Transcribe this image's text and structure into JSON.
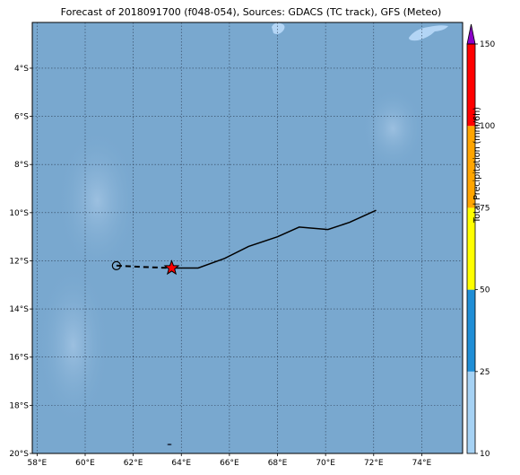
{
  "title": "Forecast of 2018091700 (f048-054), Sources: GDACS (TC track), GFS (Meteo)",
  "map": {
    "lon_range": [
      57.8,
      75.7
    ],
    "lat_range": [
      -20,
      -2.1
    ],
    "lon_ticks": [
      "58°E",
      "60°E",
      "62°E",
      "64°E",
      "66°E",
      "68°E",
      "70°E",
      "72°E",
      "74°E"
    ],
    "lon_tick_values": [
      58,
      60,
      62,
      64,
      66,
      68,
      70,
      72,
      74
    ],
    "lat_ticks": [
      "4°S",
      "6°S",
      "8°S",
      "10°S",
      "12°S",
      "14°S",
      "16°S",
      "18°S",
      "20°S"
    ],
    "lat_tick_values": [
      -4,
      -6,
      -8,
      -10,
      -12,
      -14,
      -16,
      -18,
      -20
    ],
    "ocean_color": "#79a8cf",
    "land_color": "#b3d5f5",
    "grid": true
  },
  "track": {
    "past": [
      [
        61.3,
        -12.2
      ],
      [
        62.3,
        -12.25
      ],
      [
        63.6,
        -12.3
      ]
    ],
    "forecast": [
      [
        63.6,
        -12.3
      ],
      [
        64.7,
        -12.3
      ],
      [
        65.8,
        -11.9
      ],
      [
        66.8,
        -11.4
      ],
      [
        68.0,
        -11.0
      ],
      [
        68.9,
        -10.6
      ],
      [
        70.1,
        -10.7
      ],
      [
        71.0,
        -10.4
      ],
      [
        72.1,
        -9.9
      ]
    ],
    "current_position": [
      63.6,
      -12.3
    ],
    "start_marker": [
      61.3,
      -12.2
    ],
    "current_marker_color": "#ff0000"
  },
  "colorbar": {
    "label": "Total Precipitation (mm/6h)",
    "ticks": [
      "10",
      "25",
      "50",
      "75",
      "100",
      "150"
    ],
    "bins": [
      {
        "from": 10,
        "to": 25,
        "color": "#a6d2f4"
      },
      {
        "from": 25,
        "to": 50,
        "color": "#1f8ed6"
      },
      {
        "from": 50,
        "to": 75,
        "color": "#ffff00"
      },
      {
        "from": 75,
        "to": 100,
        "color": "#ffa500"
      },
      {
        "from": 100,
        "to": 150,
        "color": "#ff0000"
      }
    ],
    "extend_color": "#8b00c8"
  }
}
